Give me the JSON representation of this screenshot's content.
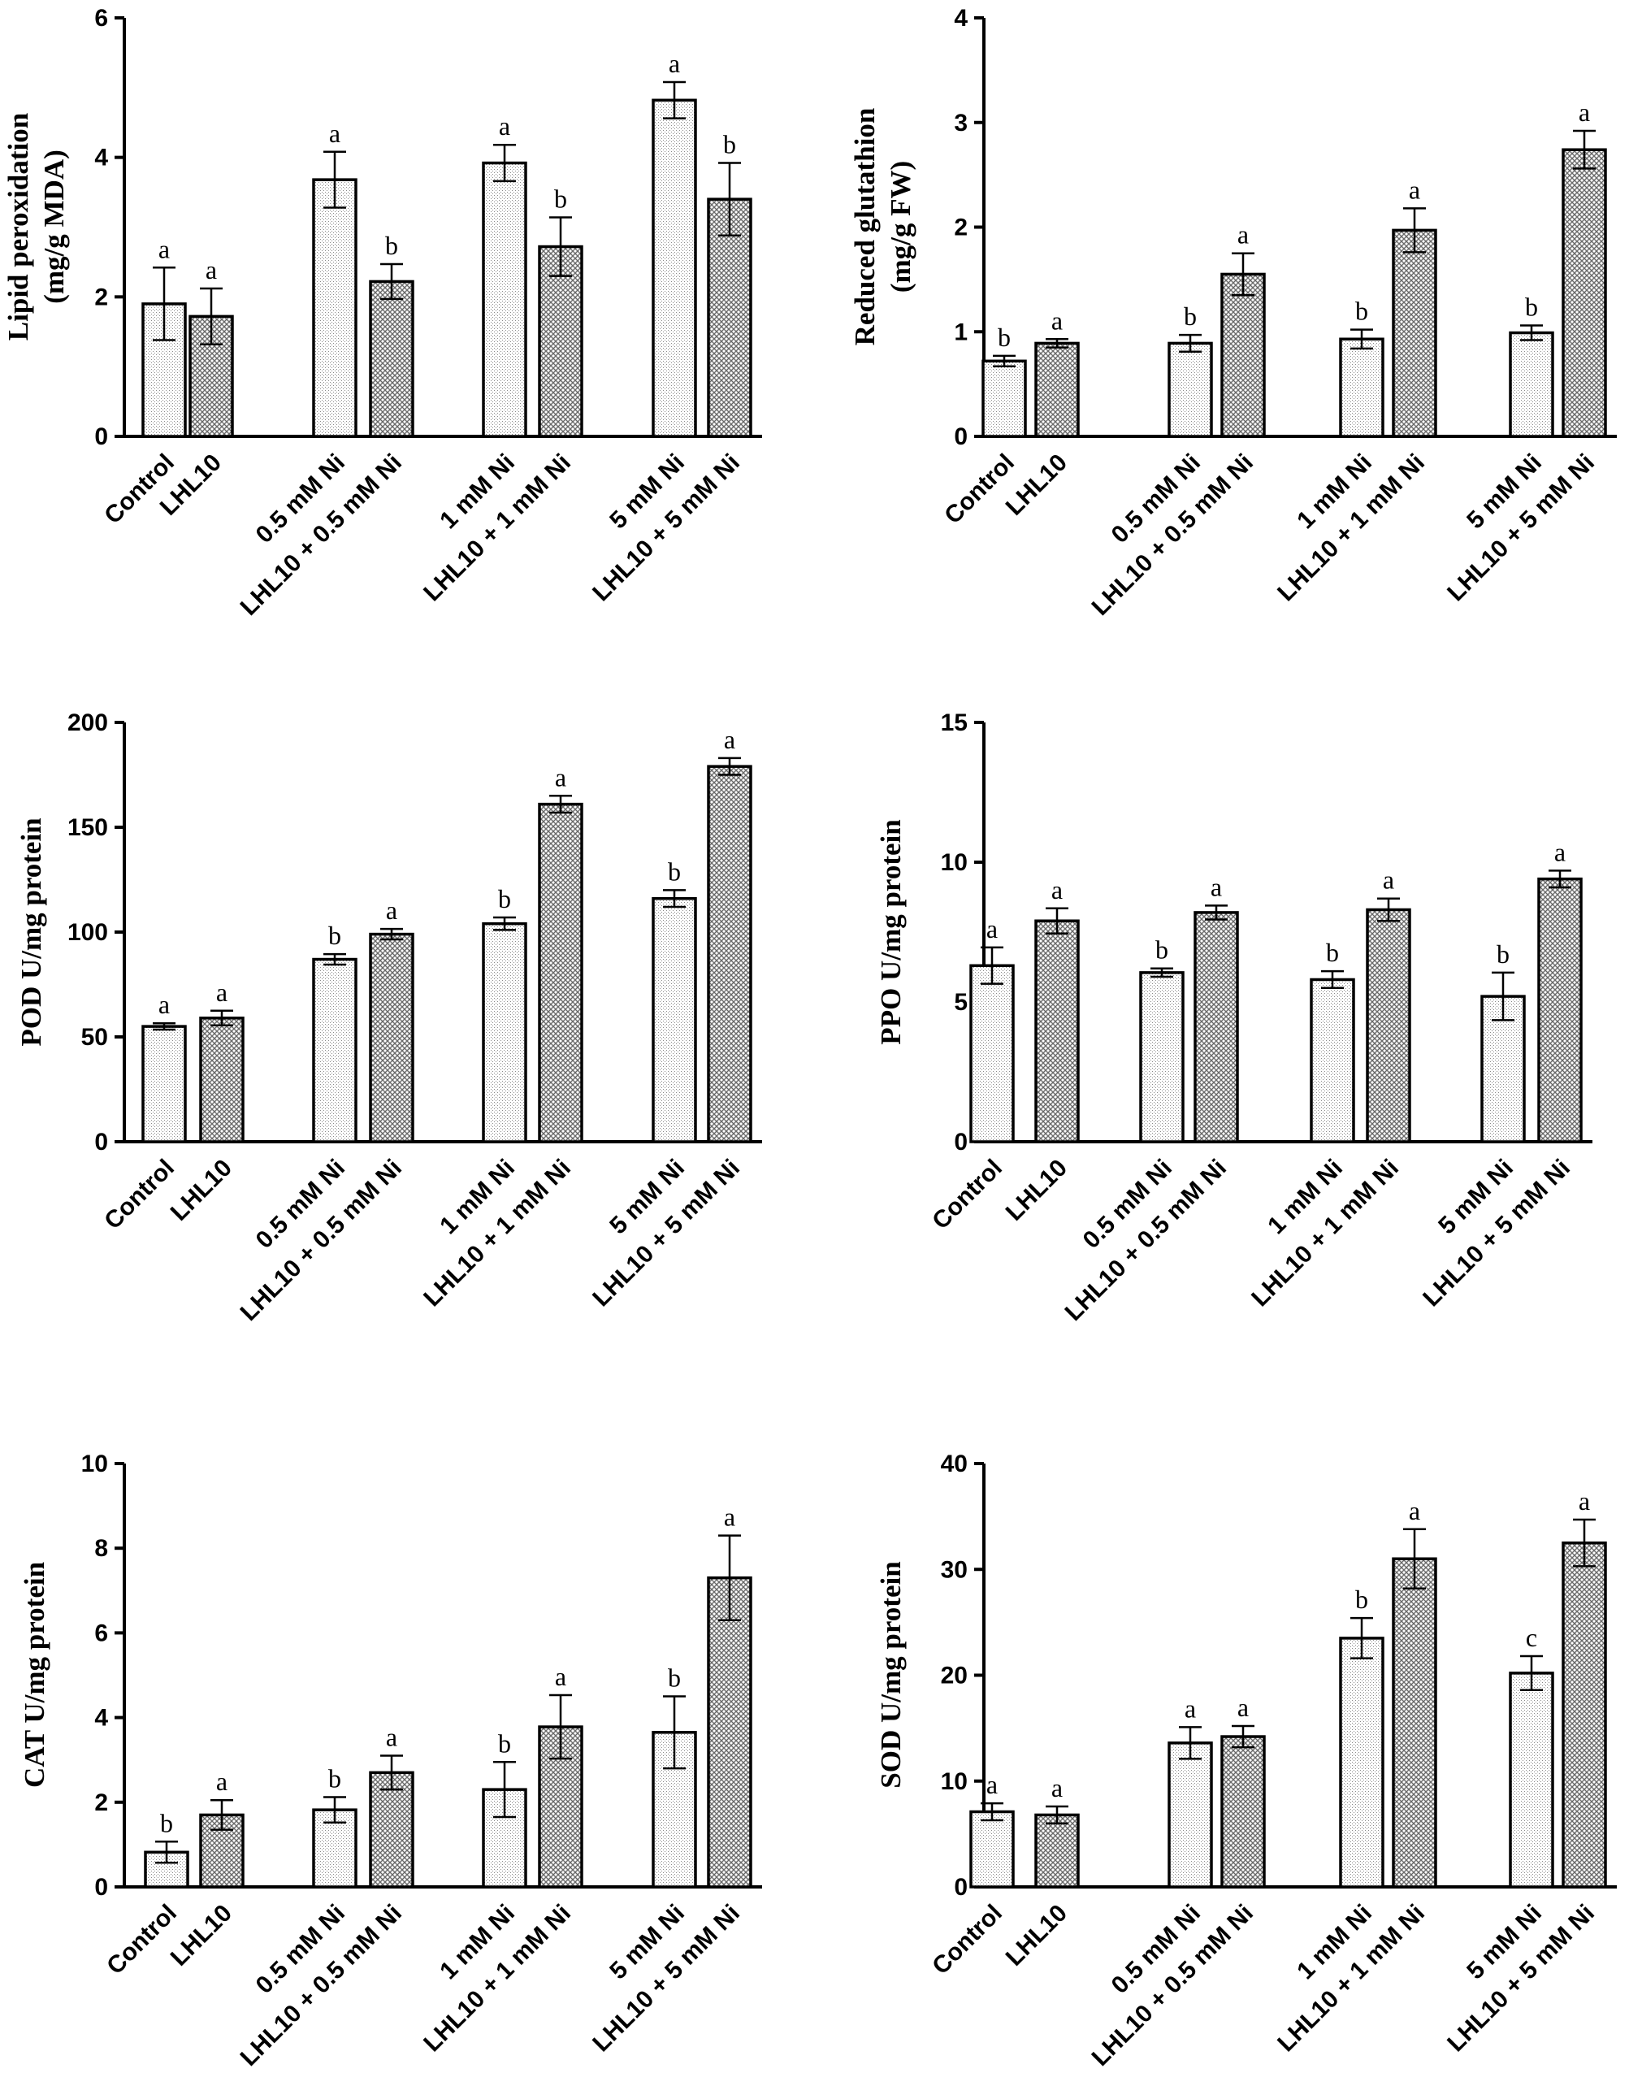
{
  "chart_data": [
    {
      "type": "bar",
      "ylabel_lines": [
        "Lipid peroxidation",
        "(mg/g MDA)"
      ],
      "ylim": [
        0,
        6
      ],
      "yticks": [
        0,
        2,
        4,
        6
      ],
      "categories": [
        "Control",
        "LHL10",
        "0.5 mM Ni",
        "LHL10 + 0.5 mM Ni",
        "1 mM Ni",
        "LHL10 + 1 mM Ni",
        "5 mM Ni",
        "LHL10 + 5 mM Ni"
      ],
      "values": [
        1.9,
        1.72,
        3.68,
        2.22,
        3.92,
        2.72,
        4.82,
        3.4
      ],
      "errors": [
        0.52,
        0.4,
        0.4,
        0.25,
        0.26,
        0.42,
        0.26,
        0.52
      ],
      "letters": [
        "a",
        "a",
        "a",
        "b",
        "a",
        "b",
        "a",
        "b"
      ]
    },
    {
      "type": "bar",
      "ylabel_lines": [
        "Reduced glutathion",
        "(mg/g FW)"
      ],
      "ylim": [
        0,
        4
      ],
      "yticks": [
        0,
        1,
        2,
        3,
        4
      ],
      "categories": [
        "Control",
        "LHL10",
        "0.5 mM Ni",
        "LHL10 + 0.5 mM Ni",
        "1 mM Ni",
        "LHL10 + 1 mM Ni",
        "5 mM Ni",
        "LHL10 + 5 mM Ni"
      ],
      "values": [
        0.72,
        0.89,
        0.89,
        1.55,
        0.93,
        1.97,
        0.99,
        2.74
      ],
      "errors": [
        0.05,
        0.04,
        0.08,
        0.2,
        0.09,
        0.21,
        0.07,
        0.18
      ],
      "letters": [
        "b",
        "a",
        "b",
        "a",
        "b",
        "a",
        "b",
        "a"
      ]
    },
    {
      "type": "bar",
      "ylabel_lines": [
        "POD U/mg protein"
      ],
      "ylim": [
        0,
        200
      ],
      "yticks": [
        0,
        50,
        100,
        150,
        200
      ],
      "categories": [
        "Control",
        "LHL10",
        "0.5 mM Ni",
        "LHL10 + 0.5 mM Ni",
        "1 mM Ni",
        "LHL10 + 1 mM Ni",
        "5 mM Ni",
        "LHL10 + 5 mM Ni"
      ],
      "values": [
        55,
        59,
        87,
        99,
        104,
        161,
        116,
        179
      ],
      "errors": [
        1.5,
        3.5,
        2.5,
        2.5,
        3,
        4,
        4,
        4
      ],
      "letters": [
        "a",
        "a",
        "b",
        "a",
        "b",
        "a",
        "b",
        "a"
      ]
    },
    {
      "type": "bar",
      "ylabel_lines": [
        "PPO U/mg protein"
      ],
      "ylim": [
        0,
        15
      ],
      "yticks": [
        0,
        5,
        10,
        15
      ],
      "categories": [
        "Control",
        "LHL10",
        "0.5 mM Ni",
        "LHL10 + 0.5 mM Ni",
        "1 mM Ni",
        "LHL10 + 1 mM Ni",
        "5 mM Ni",
        "LHL10 + 5 mM Ni"
      ],
      "values": [
        6.3,
        7.9,
        6.05,
        8.2,
        5.8,
        8.3,
        5.2,
        9.4
      ],
      "errors": [
        0.65,
        0.45,
        0.15,
        0.25,
        0.3,
        0.4,
        0.85,
        0.3
      ],
      "letters": [
        "a",
        "a",
        "b",
        "a",
        "b",
        "a",
        "b",
        "a"
      ]
    },
    {
      "type": "bar",
      "ylabel_lines": [
        "CAT U/mg protein"
      ],
      "ylim": [
        0,
        10
      ],
      "yticks": [
        0,
        2,
        4,
        6,
        8,
        10
      ],
      "categories": [
        "Control",
        "LHL10",
        "0.5 mM Ni",
        "LHL10 + 0.5 mM Ni",
        "1 mM Ni",
        "LHL10 + 1 mM Ni",
        "5 mM Ni",
        "LHL10 + 5 mM Ni"
      ],
      "values": [
        0.82,
        1.7,
        1.82,
        2.7,
        2.3,
        3.78,
        3.65,
        7.3
      ],
      "errors": [
        0.25,
        0.35,
        0.3,
        0.4,
        0.65,
        0.75,
        0.85,
        1.0
      ],
      "letters": [
        "b",
        "a",
        "b",
        "a",
        "b",
        "a",
        "b",
        "a"
      ]
    },
    {
      "type": "bar",
      "ylabel_lines": [
        "SOD U/mg protein"
      ],
      "ylim": [
        0,
        40
      ],
      "yticks": [
        0,
        10,
        20,
        30,
        40
      ],
      "categories": [
        "Control",
        "LHL10",
        "0.5 mM Ni",
        "LHL10 + 0.5 mM Ni",
        "1 mM Ni",
        "LHL10 + 1 mM Ni",
        "5 mM Ni",
        "LHL10 + 5 mM Ni"
      ],
      "values": [
        7.1,
        6.8,
        13.6,
        14.2,
        23.5,
        31.0,
        20.2,
        32.5
      ],
      "errors": [
        0.8,
        0.8,
        1.5,
        1.0,
        1.9,
        2.8,
        1.6,
        2.2
      ],
      "letters": [
        "a",
        "a",
        "a",
        "a",
        "b",
        "a",
        "c",
        "a"
      ]
    }
  ]
}
